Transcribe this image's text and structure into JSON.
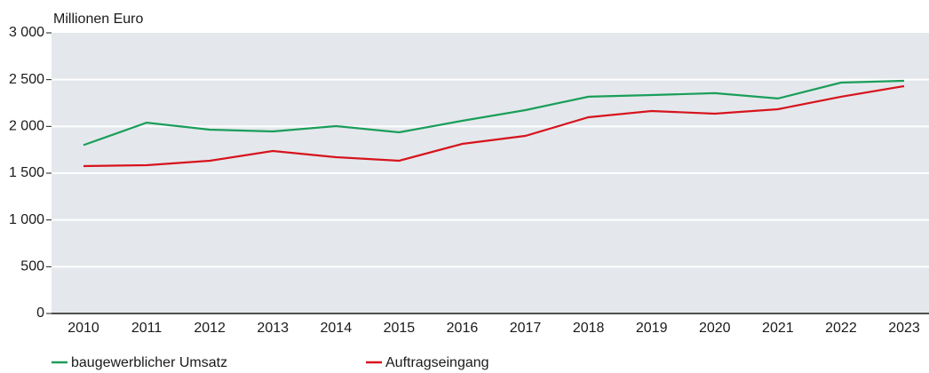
{
  "chart_data": {
    "type": "line",
    "y_label": "Millionen Euro",
    "categories": [
      "2010",
      "2011",
      "2012",
      "2013",
      "2014",
      "2015",
      "2016",
      "2017",
      "2018",
      "2019",
      "2020",
      "2021",
      "2022",
      "2023"
    ],
    "series": [
      {
        "name": "baugewerblicher Umsatz",
        "color": "#1a9e5a",
        "values": [
          1800,
          2040,
          1965,
          1946,
          2003,
          1937,
          2060,
          2174,
          2317,
          2335,
          2355,
          2298,
          2468,
          2487
        ]
      },
      {
        "name": "Auftragseingang",
        "color": "#d7141e",
        "values": [
          1576,
          1585,
          1633,
          1737,
          1671,
          1633,
          1813,
          1899,
          2098,
          2165,
          2136,
          2184,
          2317,
          2430
        ]
      }
    ],
    "ylim": [
      0,
      3000
    ],
    "yticks": [
      0,
      500,
      {
        "value": 1000,
        "label": "1 000"
      },
      {
        "value": 1500,
        "label": "1 500"
      },
      {
        "value": 2000,
        "label": "2 000"
      },
      {
        "value": 2500,
        "label": "2 500"
      },
      {
        "value": 3000,
        "label": "3 000"
      }
    ],
    "grid": true
  }
}
